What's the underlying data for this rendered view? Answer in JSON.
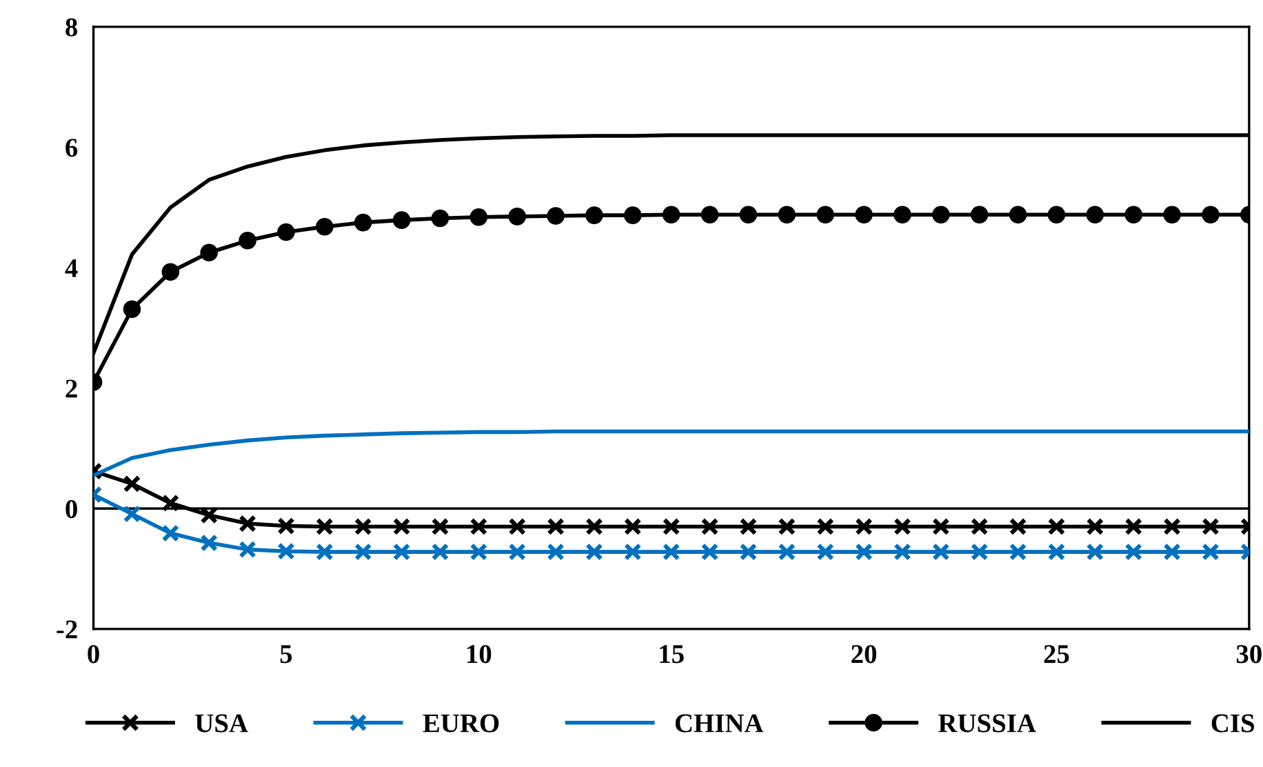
{
  "chart_data": {
    "type": "line",
    "x": [
      0,
      1,
      2,
      3,
      4,
      5,
      6,
      7,
      8,
      9,
      10,
      11,
      12,
      13,
      14,
      15,
      16,
      17,
      18,
      19,
      20,
      21,
      22,
      23,
      24,
      25,
      26,
      27,
      28,
      29,
      30
    ],
    "series": [
      {
        "name": "USA",
        "color": "#000000",
        "marker": "cross",
        "values": [
          0.62,
          0.41,
          0.09,
          -0.11,
          -0.25,
          -0.29,
          -0.3,
          -0.3,
          -0.3,
          -0.3,
          -0.3,
          -0.3,
          -0.3,
          -0.3,
          -0.3,
          -0.3,
          -0.3,
          -0.3,
          -0.3,
          -0.3,
          -0.3,
          -0.3,
          -0.3,
          -0.3,
          -0.3,
          -0.3,
          -0.3,
          -0.3,
          -0.3,
          -0.3,
          -0.3
        ]
      },
      {
        "name": "EURO",
        "color": "#0070c0",
        "marker": "cross",
        "values": [
          0.23,
          -0.09,
          -0.41,
          -0.57,
          -0.68,
          -0.71,
          -0.72,
          -0.72,
          -0.72,
          -0.72,
          -0.72,
          -0.72,
          -0.72,
          -0.72,
          -0.72,
          -0.72,
          -0.72,
          -0.72,
          -0.72,
          -0.72,
          -0.72,
          -0.72,
          -0.72,
          -0.72,
          -0.72,
          -0.72,
          -0.72,
          -0.72,
          -0.72,
          -0.72,
          -0.72
        ]
      },
      {
        "name": "CHINA",
        "color": "#0070c0",
        "marker": "none",
        "values": [
          0.55,
          0.84,
          0.97,
          1.06,
          1.13,
          1.18,
          1.21,
          1.23,
          1.25,
          1.26,
          1.27,
          1.27,
          1.28,
          1.28,
          1.28,
          1.28,
          1.28,
          1.28,
          1.28,
          1.28,
          1.28,
          1.28,
          1.28,
          1.28,
          1.28,
          1.28,
          1.28,
          1.28,
          1.28,
          1.28,
          1.28
        ]
      },
      {
        "name": "RUSSIA",
        "color": "#000000",
        "marker": "circle",
        "values": [
          2.1,
          3.31,
          3.93,
          4.25,
          4.45,
          4.59,
          4.68,
          4.75,
          4.79,
          4.82,
          4.84,
          4.85,
          4.86,
          4.87,
          4.87,
          4.88,
          4.88,
          4.88,
          4.88,
          4.88,
          4.88,
          4.88,
          4.88,
          4.88,
          4.88,
          4.88,
          4.88,
          4.88,
          4.88,
          4.88,
          4.88
        ]
      },
      {
        "name": "CIS",
        "color": "#000000",
        "marker": "none",
        "values": [
          2.58,
          4.22,
          5.0,
          5.46,
          5.68,
          5.84,
          5.95,
          6.03,
          6.08,
          6.12,
          6.15,
          6.17,
          6.18,
          6.19,
          6.19,
          6.2,
          6.2,
          6.2,
          6.2,
          6.2,
          6.2,
          6.2,
          6.2,
          6.2,
          6.2,
          6.2,
          6.2,
          6.2,
          6.2,
          6.2,
          6.2
        ]
      }
    ],
    "xlim": [
      0,
      30
    ],
    "xticks": [
      0,
      5,
      10,
      15,
      20,
      25,
      30
    ],
    "ylim": [
      -2,
      8
    ],
    "yticks": [
      {
        "value": -2,
        "label": "-2"
      },
      0,
      2,
      4,
      6,
      8
    ],
    "ref_lines": [
      {
        "axis": "y",
        "value": 0,
        "color": "#000000"
      }
    ],
    "grid": false,
    "legend": "bottom",
    "line_style": "solid"
  }
}
